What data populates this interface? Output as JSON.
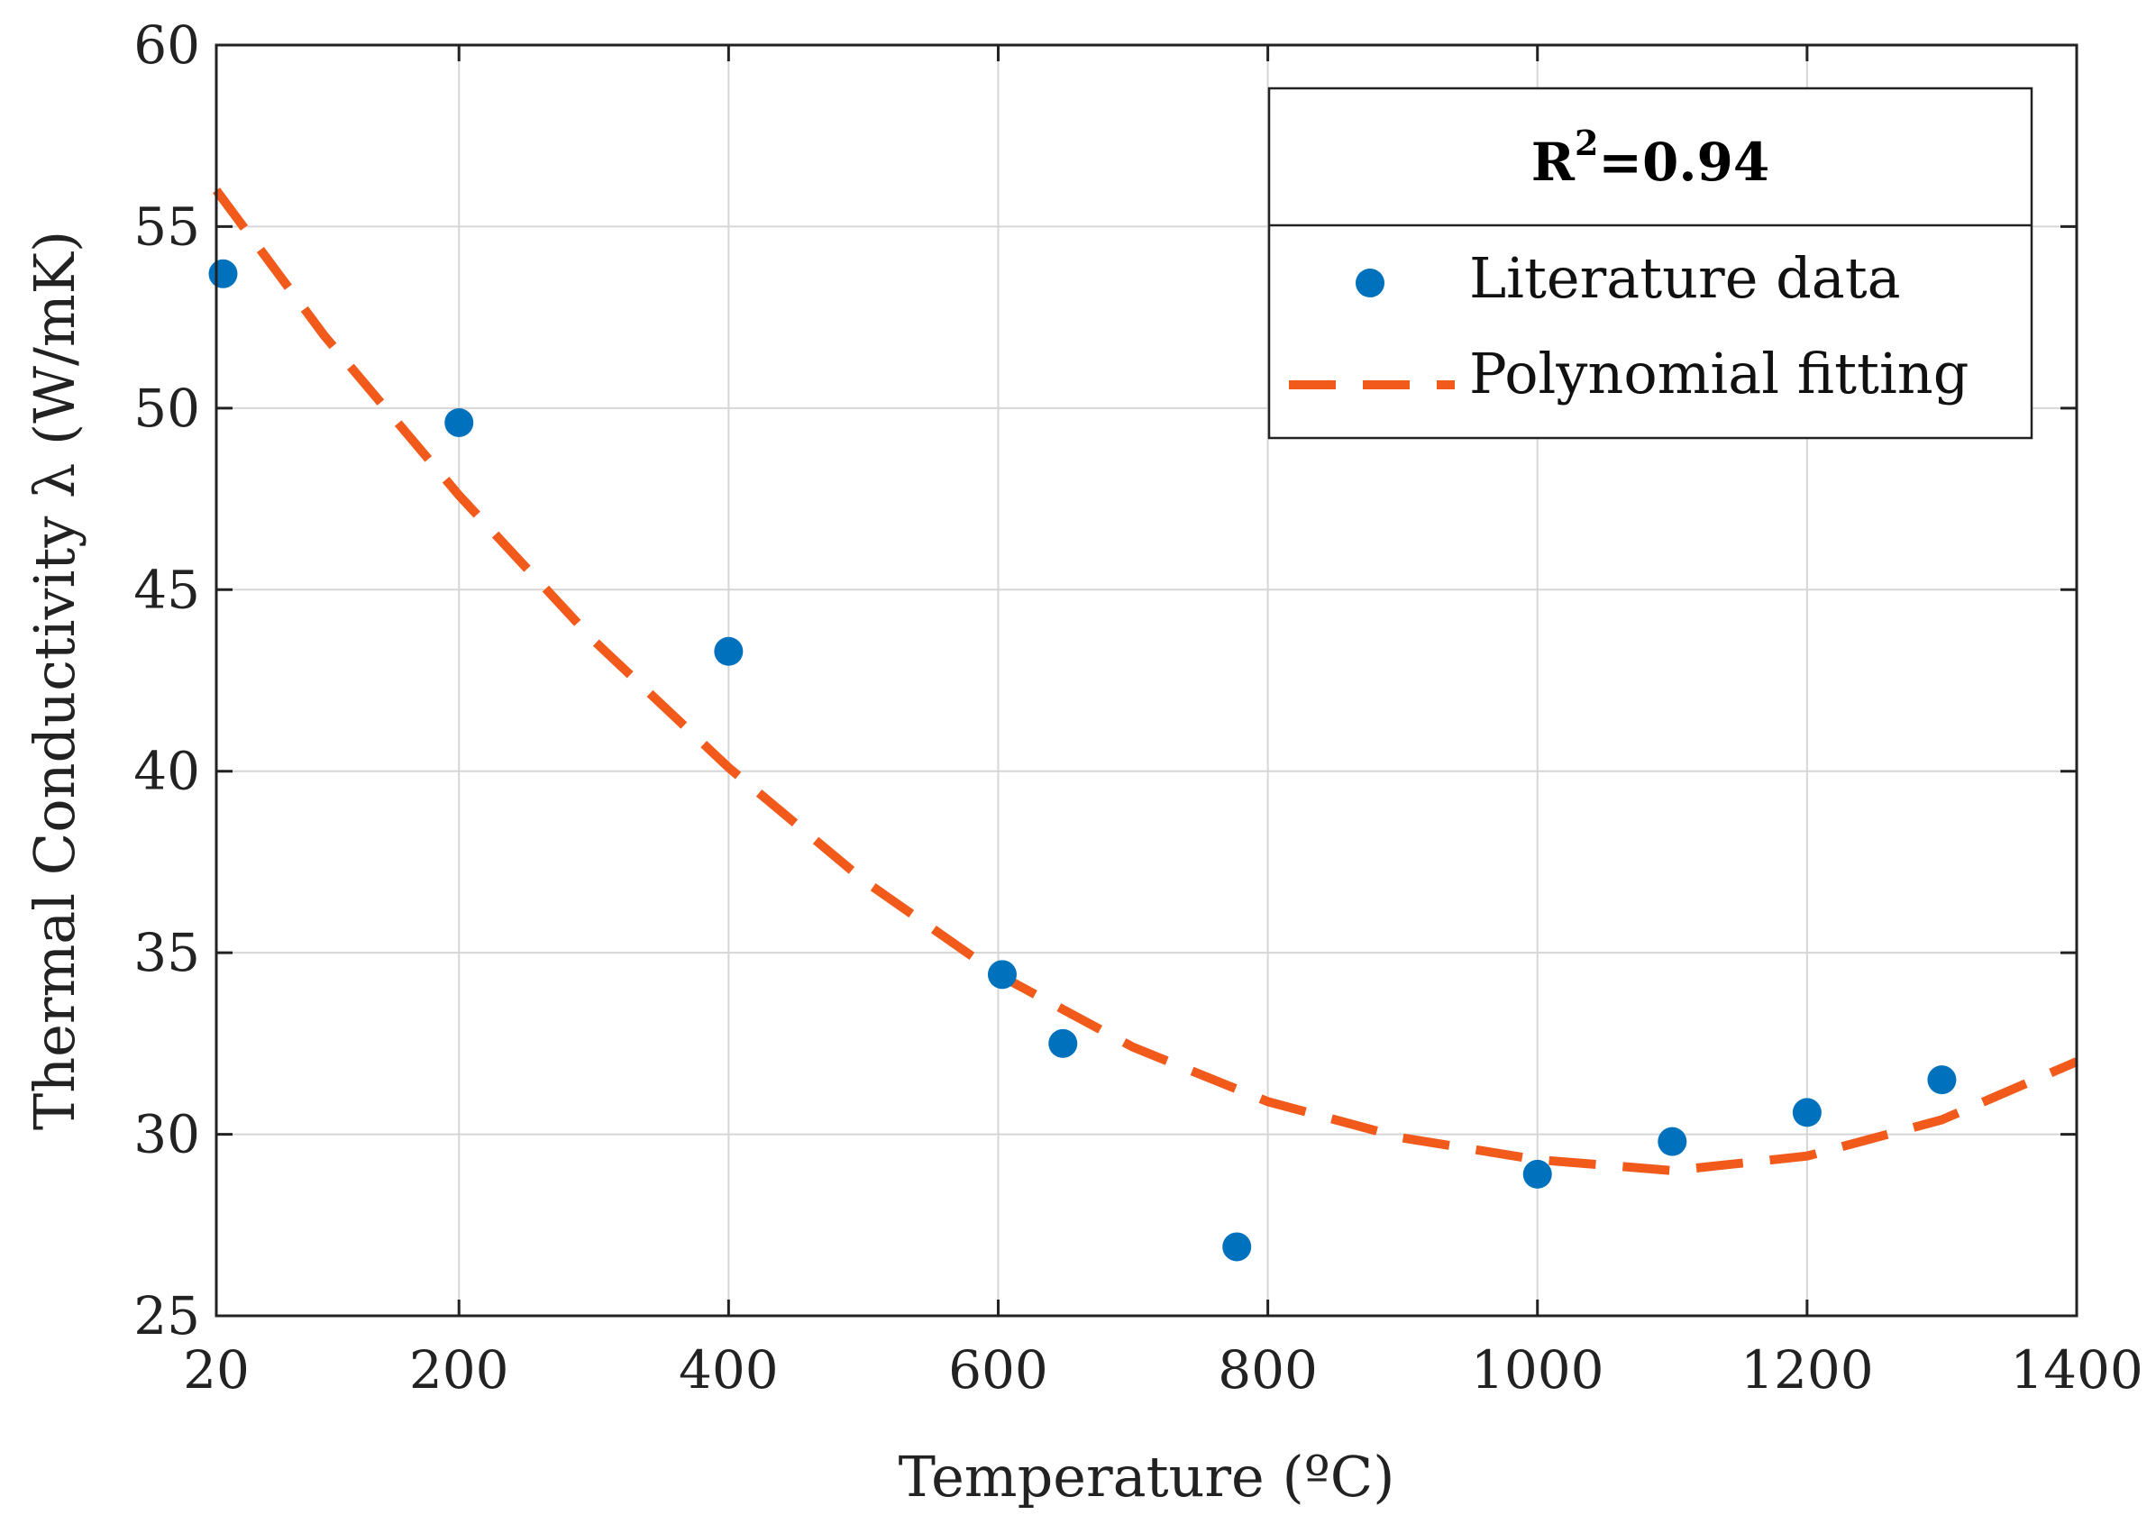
{
  "chart_data": {
    "type": "scatter",
    "title": "",
    "xlabel": "Temperature (ºC)",
    "ylabel": "Thermal Conductivity λ (W/mK)",
    "xlim": [
      20,
      1400
    ],
    "ylim": [
      25,
      60
    ],
    "xticks": [
      20,
      200,
      400,
      600,
      800,
      1000,
      1200,
      1400
    ],
    "yticks": [
      25,
      30,
      35,
      40,
      45,
      50,
      55,
      60
    ],
    "xtick_labels": [
      "20",
      "200",
      "400",
      "600",
      "800",
      "1000",
      "1200",
      "1400"
    ],
    "ytick_labels": [
      "25",
      "30",
      "35",
      "40",
      "45",
      "50",
      "55",
      "60"
    ],
    "grid": true,
    "legend": {
      "position": "top-right",
      "title_base": "R",
      "title_sup": "2",
      "title_rest": "=0.94"
    },
    "series": [
      {
        "name": "Literature data",
        "kind": "scatter",
        "color": "#0072BD",
        "x": [
          25,
          200,
          400,
          603,
          648,
          777,
          1000,
          1100,
          1200,
          1300
        ],
        "y": [
          53.7,
          49.6,
          43.3,
          34.4,
          32.5,
          26.9,
          28.9,
          29.8,
          30.6,
          31.5
        ]
      },
      {
        "name": "Polynomial fitting",
        "kind": "line",
        "style": "dashed",
        "color": "#F25A1B",
        "x": [
          20,
          100,
          200,
          300,
          400,
          500,
          600,
          700,
          800,
          900,
          1000,
          1100,
          1200,
          1300,
          1400
        ],
        "y": [
          56.0,
          52.0,
          47.6,
          43.6,
          40.1,
          37.0,
          34.4,
          32.4,
          30.9,
          29.9,
          29.3,
          29.0,
          29.4,
          30.4,
          32.0
        ]
      }
    ]
  }
}
